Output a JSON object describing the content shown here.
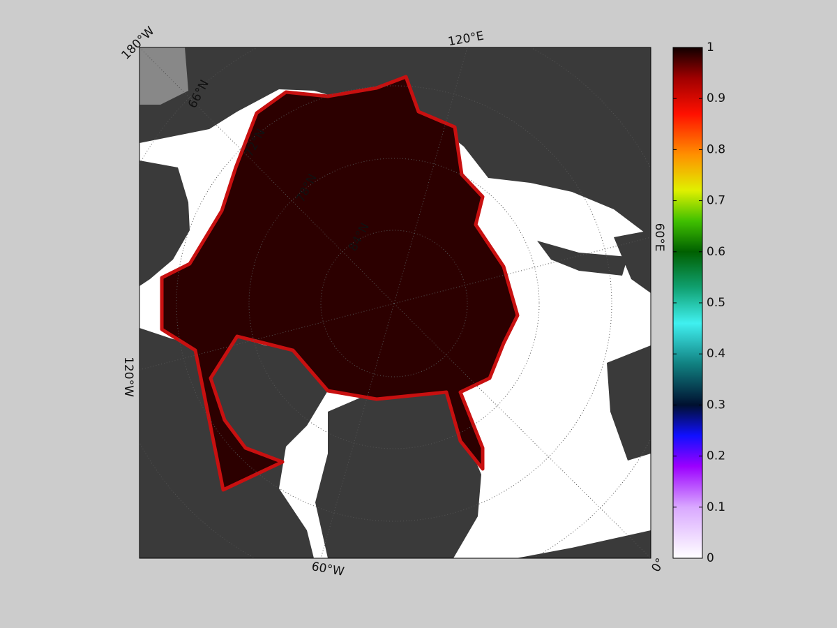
{
  "map": {
    "meridian_labels": [
      "180°W",
      "120°E",
      "60°E",
      "0°",
      "60°W",
      "120°W"
    ],
    "parallel_labels": [
      "66°N",
      "72°N",
      "78°N",
      "84°N"
    ]
  },
  "colorbar": {
    "lim": [
      0,
      1
    ],
    "ticks": [
      0,
      0.1,
      0.2,
      0.3,
      0.4,
      0.5,
      0.6,
      0.7,
      0.8,
      0.9,
      1
    ]
  }
}
